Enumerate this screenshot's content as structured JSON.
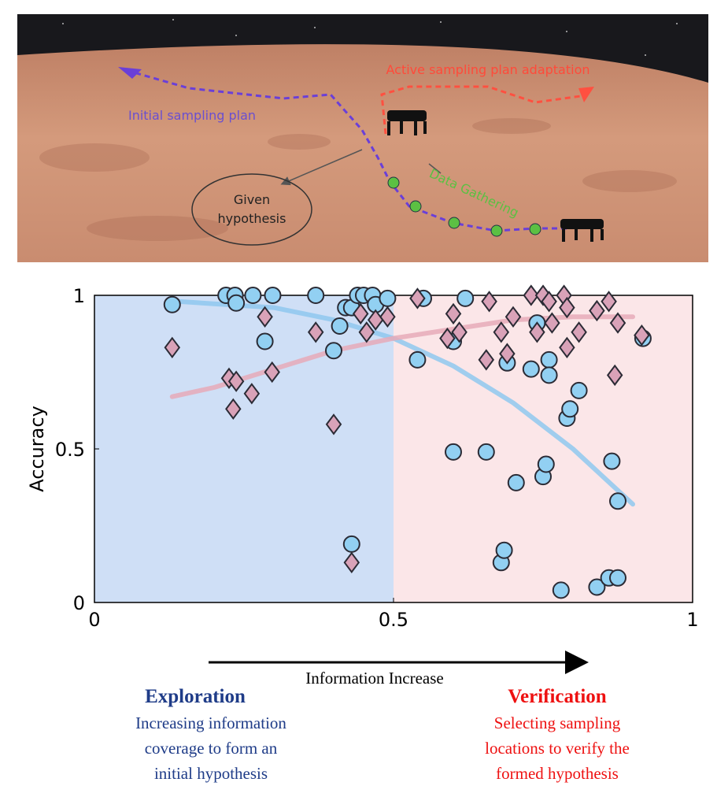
{
  "illustration": {
    "labels": {
      "adaptation": "Active sampling plan adaptation",
      "initial": "Initial sampling plan",
      "hypothesis": [
        "Given",
        "hypothesis"
      ],
      "gathering": "Data Gathering"
    }
  },
  "chart_data": {
    "type": "scatter",
    "ylabel": "Accuracy",
    "xlim": [
      0,
      1
    ],
    "ylim": [
      0,
      1
    ],
    "xticks": [
      0,
      0.5,
      1
    ],
    "yticks": [
      0,
      0.5,
      1
    ],
    "regions": [
      {
        "xlim": [
          0,
          0.5
        ],
        "color": "#cfdff6"
      },
      {
        "xlim": [
          0.5,
          1
        ],
        "color": "#fbe6e8"
      }
    ],
    "series": [
      {
        "marker": "circle",
        "color": "#92d0f2",
        "x": [
          0.13,
          0.22,
          0.235,
          0.237,
          0.265,
          0.298,
          0.285,
          0.37,
          0.4,
          0.41,
          0.42,
          0.43,
          0.44,
          0.45,
          0.465,
          0.47,
          0.49,
          0.43,
          0.54,
          0.55,
          0.62,
          0.6,
          0.6,
          0.655,
          0.69,
          0.705,
          0.73,
          0.68,
          0.685,
          0.74,
          0.75,
          0.755,
          0.76,
          0.76,
          0.78,
          0.79,
          0.795,
          0.81,
          0.84,
          0.86,
          0.875,
          0.865,
          0.875,
          0.917
        ],
        "values": [
          0.97,
          1.0,
          1.0,
          0.975,
          1.0,
          1.0,
          0.85,
          1.0,
          0.82,
          0.9,
          0.96,
          0.96,
          1.0,
          1.0,
          1.0,
          0.97,
          0.99,
          0.19,
          0.79,
          0.99,
          0.99,
          0.49,
          0.85,
          0.49,
          0.78,
          0.39,
          0.76,
          0.13,
          0.17,
          0.91,
          0.41,
          0.45,
          0.79,
          0.74,
          0.04,
          0.6,
          0.63,
          0.69,
          0.05,
          0.08,
          0.08,
          0.46,
          0.33,
          0.86
        ]
      },
      {
        "marker": "diamond",
        "color": "#d9a2b8",
        "x": [
          0.13,
          0.225,
          0.237,
          0.232,
          0.263,
          0.285,
          0.297,
          0.37,
          0.4,
          0.43,
          0.445,
          0.455,
          0.47,
          0.49,
          0.54,
          0.59,
          0.6,
          0.61,
          0.655,
          0.66,
          0.68,
          0.69,
          0.7,
          0.73,
          0.74,
          0.75,
          0.76,
          0.765,
          0.785,
          0.79,
          0.79,
          0.81,
          0.84,
          0.86,
          0.87,
          0.875,
          0.915
        ],
        "values": [
          0.83,
          0.73,
          0.72,
          0.63,
          0.68,
          0.93,
          0.75,
          0.88,
          0.58,
          0.13,
          0.94,
          0.88,
          0.92,
          0.93,
          0.99,
          0.86,
          0.94,
          0.88,
          0.79,
          0.98,
          0.88,
          0.81,
          0.93,
          1.0,
          0.88,
          1.0,
          0.98,
          0.91,
          1.0,
          0.96,
          0.83,
          0.88,
          0.95,
          0.98,
          0.74,
          0.91,
          0.87
        ]
      }
    ],
    "trends": [
      {
        "color": "#8fc8ee",
        "x": [
          0.14,
          0.3,
          0.4,
          0.5,
          0.6,
          0.7,
          0.8,
          0.9
        ],
        "values": [
          0.98,
          0.96,
          0.92,
          0.86,
          0.77,
          0.65,
          0.5,
          0.32
        ]
      },
      {
        "color": "#e6aab9",
        "x": [
          0.13,
          0.2,
          0.3,
          0.4,
          0.5,
          0.6,
          0.7,
          0.8,
          0.9
        ],
        "values": [
          0.67,
          0.7,
          0.76,
          0.82,
          0.86,
          0.89,
          0.92,
          0.93,
          0.93
        ]
      }
    ]
  },
  "annotations": {
    "arrow_label": "Information Increase",
    "exploration": {
      "title": "Exploration",
      "lines": [
        "Increasing information",
        "coverage to form an",
        "initial hypothesis"
      ]
    },
    "verification": {
      "title": "Verification",
      "lines": [
        "Selecting sampling",
        "locations to verify the",
        "formed hypothesis"
      ]
    }
  }
}
